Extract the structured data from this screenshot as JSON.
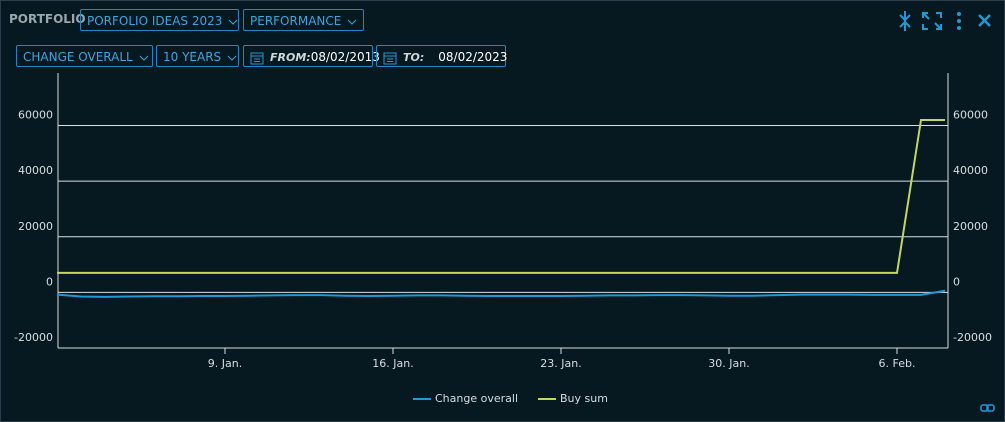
{
  "header": {
    "label": "PORTFOLIO",
    "portfolio": "PORFOLIO IDEAS 2023",
    "view": "PERFORMANCE"
  },
  "filters": {
    "measure": "CHANGE OVERALL",
    "period": "10 YEARS",
    "from_label": "FROM:",
    "from": "08/02/2013",
    "to_label": "TO:",
    "to": "08/02/2023"
  },
  "chart_data": {
    "type": "line",
    "categories": [
      null,
      null,
      null,
      null,
      null,
      null,
      null,
      "9. Jan.",
      null,
      null,
      null,
      null,
      null,
      null,
      "16. Jan.",
      null,
      null,
      null,
      null,
      null,
      null,
      "23. Jan.",
      null,
      null,
      null,
      null,
      null,
      null,
      "30. Jan.",
      null,
      null,
      null,
      null,
      null,
      null,
      "6. Feb.",
      null,
      null
    ],
    "series": [
      {
        "name": "Change overall",
        "color": "#1f9ad6",
        "values": [
          -800,
          -1500,
          -1600,
          -1500,
          -1400,
          -1400,
          -1300,
          -1300,
          -1200,
          -1100,
          -1000,
          -1000,
          -1200,
          -1300,
          -1200,
          -1100,
          -1100,
          -1200,
          -1300,
          -1300,
          -1300,
          -1300,
          -1200,
          -1100,
          -1100,
          -1000,
          -1000,
          -1100,
          -1200,
          -1200,
          -1000,
          -800,
          -800,
          -800,
          -900,
          -900,
          -900,
          600
        ]
      },
      {
        "name": "Buy sum",
        "color": "#c5d65c",
        "axis": "y2",
        "values": [
          7000,
          7000,
          7000,
          7000,
          7000,
          7000,
          7000,
          7000,
          7000,
          7000,
          7000,
          7000,
          7000,
          7000,
          7000,
          7000,
          7000,
          7000,
          7000,
          7000,
          7000,
          7000,
          7000,
          7000,
          7000,
          7000,
          7000,
          7000,
          7000,
          7000,
          7000,
          7000,
          7000,
          7000,
          7000,
          7000,
          62000,
          62000
        ]
      }
    ],
    "ylim": [
      -20000,
      76000
    ],
    "yticks": [
      -20000,
      0,
      20000,
      40000,
      60000
    ],
    "y2lim": [
      -20000,
      76000
    ],
    "y2ticks": [
      -20000,
      0,
      20000,
      40000,
      60000
    ],
    "grid": true
  }
}
